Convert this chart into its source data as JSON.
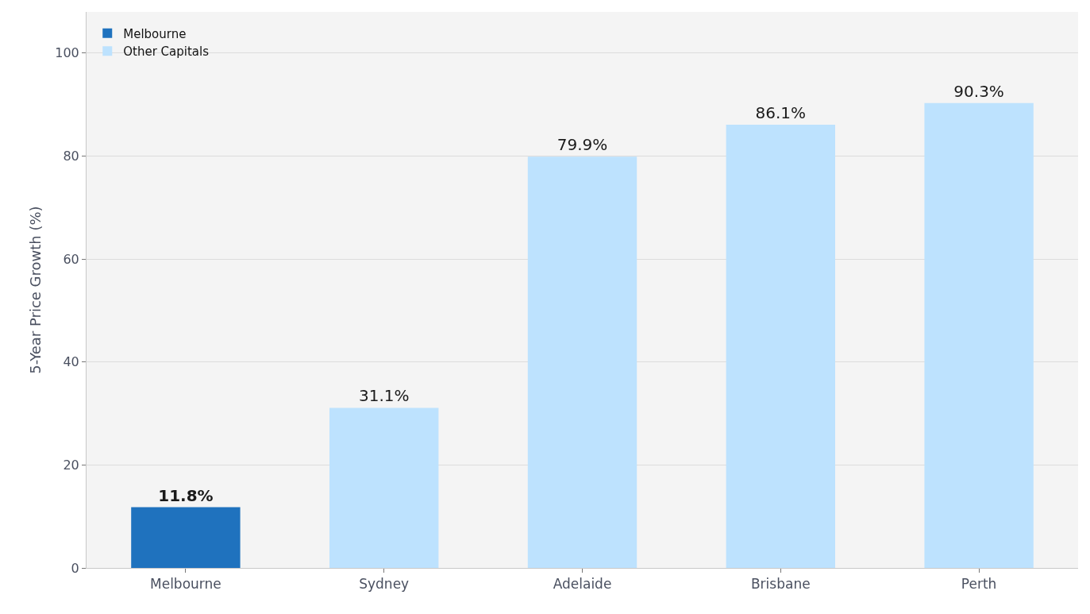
{
  "chart_data": {
    "type": "bar",
    "ylabel": "5-Year Price Growth (%)",
    "categories": [
      "Melbourne",
      "Sydney",
      "Adelaide",
      "Brisbane",
      "Perth"
    ],
    "series": [
      {
        "name": "Melbourne",
        "color": "#1f72be",
        "values": [
          11.8,
          null,
          null,
          null,
          null
        ],
        "value_labels": [
          "11.8%",
          null,
          null,
          null,
          null
        ]
      },
      {
        "name": "Other Capitals",
        "color": "#bde2fe",
        "values": [
          null,
          31.1,
          79.9,
          86.1,
          90.3
        ],
        "value_labels": [
          null,
          "31.1%",
          "79.9%",
          "86.1%",
          "90.3%"
        ]
      }
    ],
    "ylim": [
      0,
      108
    ],
    "yticks": [
      0,
      20,
      40,
      60,
      80,
      100
    ],
    "grid": "y",
    "legend": "top left"
  }
}
